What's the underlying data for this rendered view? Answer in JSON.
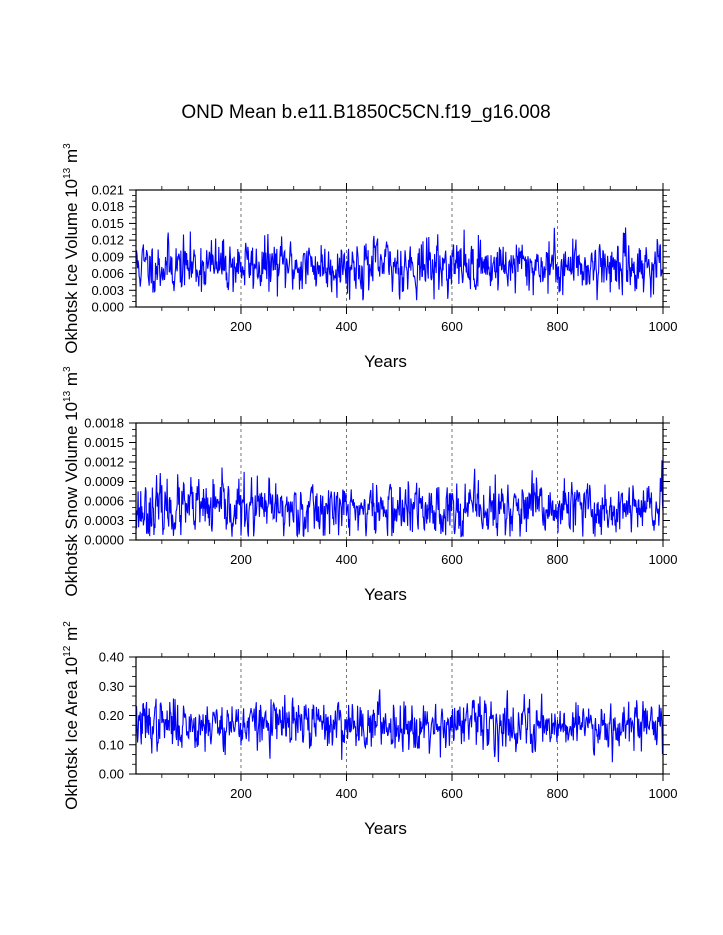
{
  "title": "OND Mean b.e11.B1850C5CN.f19_g16.008",
  "colors": {
    "series": "#0000ff",
    "axes": "#000000",
    "grid": "#555555"
  },
  "chart_data": [
    {
      "type": "line",
      "ylabel": {
        "text": "Okhotsk Ice Volume 10",
        "exp1": "13",
        "unit": " m",
        "exp2": "3"
      },
      "xlabel": "Years",
      "xlim": [
        1,
        1000
      ],
      "ylim": [
        0,
        0.021
      ],
      "xticks": [
        200,
        400,
        600,
        800,
        1000
      ],
      "xtick_labels": [
        "200",
        "400",
        "600",
        "800",
        "1000"
      ],
      "yticks": [
        0,
        0.003,
        0.006,
        0.009,
        0.012,
        0.015,
        0.018,
        0.021
      ],
      "ytick_labels": [
        "0.000",
        "0.003",
        "0.006",
        "0.009",
        "0.012",
        "0.015",
        "0.018",
        "0.021"
      ],
      "grid": "dashed vertical lines at 200, 400, 600, 800",
      "series_profile": {
        "n": 1000,
        "mean": 0.0074,
        "sd": 0.0024,
        "min": 0.0012,
        "max": 0.0178,
        "seed": 11
      }
    },
    {
      "type": "line",
      "ylabel": {
        "text": "Okhotsk Snow Volume 10",
        "exp1": "13",
        "unit": " m",
        "exp2": "3"
      },
      "xlabel": "Years",
      "xlim": [
        1,
        1000
      ],
      "ylim": [
        0,
        0.0018
      ],
      "xticks": [
        200,
        400,
        600,
        800,
        1000
      ],
      "xtick_labels": [
        "200",
        "400",
        "600",
        "800",
        "1000"
      ],
      "yticks": [
        0,
        0.0003,
        0.0006,
        0.0009,
        0.0012,
        0.0015,
        0.0018
      ],
      "ytick_labels": [
        "0.0000",
        "0.0003",
        "0.0006",
        "0.0009",
        "0.0012",
        "0.0015",
        "0.0018"
      ],
      "grid": "dashed vertical lines at 200, 400, 600, 800",
      "series_profile": {
        "n": 1000,
        "mean": 0.00047,
        "sd": 0.00022,
        "min": 5e-05,
        "max": 0.00152,
        "seed": 23
      }
    },
    {
      "type": "line",
      "ylabel": {
        "text": "Okhotsk Ice Area 10",
        "exp1": "12",
        "unit": " m",
        "exp2": "2"
      },
      "xlabel": "Years",
      "xlim": [
        1,
        1000
      ],
      "ylim": [
        0,
        0.4
      ],
      "xticks": [
        200,
        400,
        600,
        800,
        1000
      ],
      "xtick_labels": [
        "200",
        "400",
        "600",
        "800",
        "1000"
      ],
      "yticks": [
        0,
        0.1,
        0.2,
        0.3,
        0.4
      ],
      "ytick_labels": [
        "0.00",
        "0.10",
        "0.20",
        "0.30",
        "0.40"
      ],
      "grid": "dashed vertical lines at 200, 400, 600, 800",
      "series_profile": {
        "n": 1000,
        "mean": 0.17,
        "sd": 0.042,
        "min": 0.04,
        "max": 0.35,
        "seed": 37
      }
    }
  ]
}
